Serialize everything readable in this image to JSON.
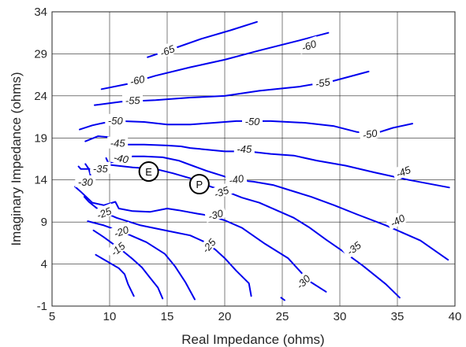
{
  "chart_data": {
    "type": "contour",
    "xlabel": "Real Impedance (ohms)",
    "ylabel": "Imaginary Impedance (ohms)",
    "xlim": [
      5,
      40
    ],
    "ylim": [
      -1,
      34
    ],
    "xticks": [
      "5",
      "10",
      "15",
      "20",
      "25",
      "30",
      "35",
      "40"
    ],
    "yticks": [
      "-1",
      "4",
      "9",
      "14",
      "19",
      "24",
      "29",
      "34"
    ],
    "grid": true,
    "line_color": "#0000ee",
    "contours": [
      {
        "level": "-65",
        "points": [
          [
            13.3,
            28.6
          ],
          [
            15.5,
            29.6
          ],
          [
            18,
            30.8
          ],
          [
            20.5,
            31.8
          ],
          [
            22.8,
            32.8
          ]
        ]
      },
      {
        "level": "-60",
        "points": [
          [
            9.3,
            24.8
          ],
          [
            11.5,
            25.4
          ],
          [
            14,
            26.4
          ],
          [
            17,
            27.4
          ],
          [
            20,
            28.3
          ],
          [
            23,
            29.4
          ],
          [
            26.5,
            30.6
          ],
          [
            29,
            31.5
          ]
        ]
      },
      {
        "level": "-55",
        "points": [
          [
            8.7,
            22.9
          ],
          [
            11,
            23.3
          ],
          [
            14,
            23.5
          ],
          [
            17,
            23.8
          ],
          [
            20,
            24.0
          ],
          [
            23,
            24.6
          ],
          [
            26.5,
            25.1
          ],
          [
            29.5,
            25.8
          ],
          [
            32.5,
            26.9
          ]
        ]
      },
      {
        "level": "-50",
        "points": [
          [
            7.4,
            20.0
          ],
          [
            8.5,
            20.5
          ],
          [
            9.5,
            20.8
          ],
          [
            11,
            21.0
          ],
          [
            13,
            20.9
          ],
          [
            15,
            20.6
          ],
          [
            17,
            20.6
          ],
          [
            19,
            20.8
          ],
          [
            21,
            21.0
          ],
          [
            24,
            21.0
          ],
          [
            27,
            20.8
          ],
          [
            29.5,
            20.4
          ],
          [
            31.5,
            19.7
          ],
          [
            33,
            19.5
          ],
          [
            34.6,
            20.2
          ],
          [
            36.3,
            20.7
          ]
        ]
      },
      {
        "level": "-45",
        "points": [
          [
            7.9,
            18.6
          ],
          [
            9,
            19.2
          ],
          [
            9.9,
            19.1
          ],
          [
            10.2,
            18.2
          ],
          [
            11.5,
            18.2
          ],
          [
            13,
            18.2
          ],
          [
            15,
            18.1
          ],
          [
            16.2,
            18.0
          ],
          [
            17,
            17.8
          ],
          [
            18.5,
            17.6
          ],
          [
            20,
            17.4
          ],
          [
            22,
            17.4
          ],
          [
            24,
            17.1
          ],
          [
            26,
            16.9
          ],
          [
            28,
            16.3
          ],
          [
            30.5,
            15.7
          ],
          [
            33,
            14.9
          ],
          [
            36,
            14.0
          ],
          [
            39.5,
            13.1
          ]
        ]
      },
      {
        "level": "-40",
        "points": [
          [
            9.7,
            16.6
          ],
          [
            9.9,
            16.0
          ],
          [
            10.7,
            16.3
          ],
          [
            11.8,
            16.8
          ],
          [
            13,
            16.8
          ],
          [
            14.6,
            16.7
          ],
          [
            16,
            16.3
          ],
          [
            17,
            15.8
          ],
          [
            18.4,
            15.1
          ],
          [
            19.8,
            14.5
          ],
          [
            21,
            14.0
          ],
          [
            22.5,
            13.8
          ],
          [
            24.2,
            13.4
          ],
          [
            25.6,
            12.8
          ],
          [
            27.5,
            12.0
          ],
          [
            29.5,
            11.0
          ],
          [
            31.5,
            9.9
          ],
          [
            34,
            8.6
          ],
          [
            37,
            6.8
          ],
          [
            39.4,
            4.5
          ]
        ]
      },
      {
        "level": "-35",
        "points": [
          [
            7.3,
            15.6
          ],
          [
            7.5,
            15.3
          ],
          [
            8.2,
            15.3
          ],
          [
            8.4,
            15.3
          ],
          [
            10,
            15.8
          ],
          [
            12,
            15.5
          ],
          [
            14,
            15.3
          ],
          [
            15.5,
            14.8
          ],
          [
            17,
            14.2
          ],
          [
            18.8,
            13.2
          ],
          [
            20,
            12.7
          ],
          [
            21.5,
            11.9
          ],
          [
            23,
            11.3
          ],
          [
            24.5,
            10.4
          ],
          [
            26,
            9.5
          ],
          [
            27.3,
            8.4
          ],
          [
            28.8,
            6.9
          ],
          [
            30.5,
            5.3
          ],
          [
            32,
            3.8
          ],
          [
            34,
            1.6
          ],
          [
            35.2,
            0
          ]
        ]
      },
      {
        "level": "-30",
        "points": [
          [
            7.9,
            15.9
          ],
          [
            8.2,
            15.3
          ],
          [
            8.4,
            14.2
          ],
          [
            7.8,
            14.2
          ],
          [
            7.4,
            13.6
          ],
          [
            7.0,
            13.2
          ],
          [
            7.5,
            12.6
          ],
          [
            8.5,
            11.3
          ],
          [
            9.5,
            11.0
          ],
          [
            10.5,
            11.4
          ],
          [
            10.8,
            10.6
          ],
          [
            12,
            10.3
          ],
          [
            13.5,
            10.2
          ],
          [
            15,
            10.6
          ],
          [
            16,
            10.4
          ],
          [
            17.6,
            10.0
          ],
          [
            18.5,
            9.8
          ],
          [
            20,
            9.2
          ],
          [
            21.5,
            8.3
          ],
          [
            23.5,
            6.4
          ],
          [
            25.5,
            4.7
          ],
          [
            27.3,
            2.0
          ],
          [
            28.8,
            0.7
          ]
        ]
      },
      {
        "level": "-30b",
        "points": [
          [
            24.9,
            0
          ],
          [
            25.2,
            -0.3
          ]
        ]
      },
      {
        "level": "-25",
        "points": [
          [
            7.8,
            12.0
          ],
          [
            8.2,
            11.4
          ],
          [
            9.1,
            10.4
          ],
          [
            10.6,
            9.5
          ],
          [
            12.7,
            8.6
          ],
          [
            15.2,
            7.9
          ],
          [
            17,
            7.4
          ],
          [
            18.3,
            6.6
          ],
          [
            19.2,
            5.7
          ],
          [
            20,
            4.7
          ],
          [
            21,
            3.2
          ],
          [
            22.1,
            1.7
          ],
          [
            22.3,
            0.2
          ]
        ]
      },
      {
        "level": "-20",
        "points": [
          [
            8.1,
            9.1
          ],
          [
            9.5,
            8.6
          ],
          [
            11.5,
            7.6
          ],
          [
            13.2,
            6.6
          ],
          [
            14.8,
            5.2
          ],
          [
            15.7,
            3.7
          ],
          [
            16.6,
            1.8
          ],
          [
            17.4,
            -0.2
          ]
        ]
      },
      {
        "level": "-15",
        "points": [
          [
            8.6,
            8.0
          ],
          [
            9.5,
            7.2
          ],
          [
            10.2,
            6.5
          ],
          [
            11.1,
            5.6
          ],
          [
            12.0,
            4.6
          ],
          [
            12.8,
            3.6
          ],
          [
            13.5,
            2.4
          ],
          [
            14.2,
            1.2
          ],
          [
            14.6,
            -0.1
          ]
        ]
      },
      {
        "level": "-10",
        "points": [
          [
            8.8,
            5.1
          ],
          [
            9.8,
            4.3
          ],
          [
            10.8,
            3.5
          ],
          [
            11.3,
            2.8
          ],
          [
            11.6,
            1.6
          ],
          [
            12.1,
            0.2
          ]
        ]
      }
    ],
    "contour_labels": [
      {
        "text": "-65",
        "x": 15.0,
        "y": 29.4,
        "angle": -22
      },
      {
        "text": "-60",
        "x": 12.4,
        "y": 25.9,
        "angle": -12
      },
      {
        "text": "-60",
        "x": 27.3,
        "y": 30.0,
        "angle": -20
      },
      {
        "text": "-55",
        "x": 12.0,
        "y": 23.5,
        "angle": -2
      },
      {
        "text": "-55",
        "x": 28.5,
        "y": 25.6,
        "angle": -10
      },
      {
        "text": "-50",
        "x": 10.5,
        "y": 21.1,
        "angle": 0
      },
      {
        "text": "-50",
        "x": 22.4,
        "y": 21.0,
        "angle": 0
      },
      {
        "text": "-50",
        "x": 32.6,
        "y": 19.5,
        "angle": -10
      },
      {
        "text": "-45",
        "x": 10.7,
        "y": 18.4,
        "angle": 0
      },
      {
        "text": "-45",
        "x": 21.7,
        "y": 17.7,
        "angle": 0
      },
      {
        "text": "-45",
        "x": 35.5,
        "y": 15.0,
        "angle": -22
      },
      {
        "text": "-40",
        "x": 11.0,
        "y": 16.6,
        "angle": 10
      },
      {
        "text": "-40",
        "x": 21.0,
        "y": 14.1,
        "angle": -10
      },
      {
        "text": "-40",
        "x": 35.0,
        "y": 9.2,
        "angle": -28
      },
      {
        "text": "-35",
        "x": 9.2,
        "y": 15.4,
        "angle": 0
      },
      {
        "text": "-35",
        "x": 19.7,
        "y": 12.6,
        "angle": -20
      },
      {
        "text": "-35",
        "x": 31.2,
        "y": 5.9,
        "angle": -38
      },
      {
        "text": "-30",
        "x": 7.9,
        "y": 13.8,
        "angle": 0
      },
      {
        "text": "-30",
        "x": 19.2,
        "y": 9.9,
        "angle": -15
      },
      {
        "text": "-30",
        "x": 26.8,
        "y": 1.9,
        "angle": -45
      },
      {
        "text": "-25",
        "x": 9.5,
        "y": 10.1,
        "angle": -22
      },
      {
        "text": "-25",
        "x": 18.6,
        "y": 6.2,
        "angle": -50
      },
      {
        "text": "-20",
        "x": 11.0,
        "y": 7.9,
        "angle": -20
      },
      {
        "text": "-15",
        "x": 10.7,
        "y": 5.8,
        "angle": -40
      }
    ],
    "markers": [
      {
        "label": "E",
        "x": 13.4,
        "y": 15.0
      },
      {
        "label": "P",
        "x": 17.8,
        "y": 13.5
      }
    ]
  }
}
